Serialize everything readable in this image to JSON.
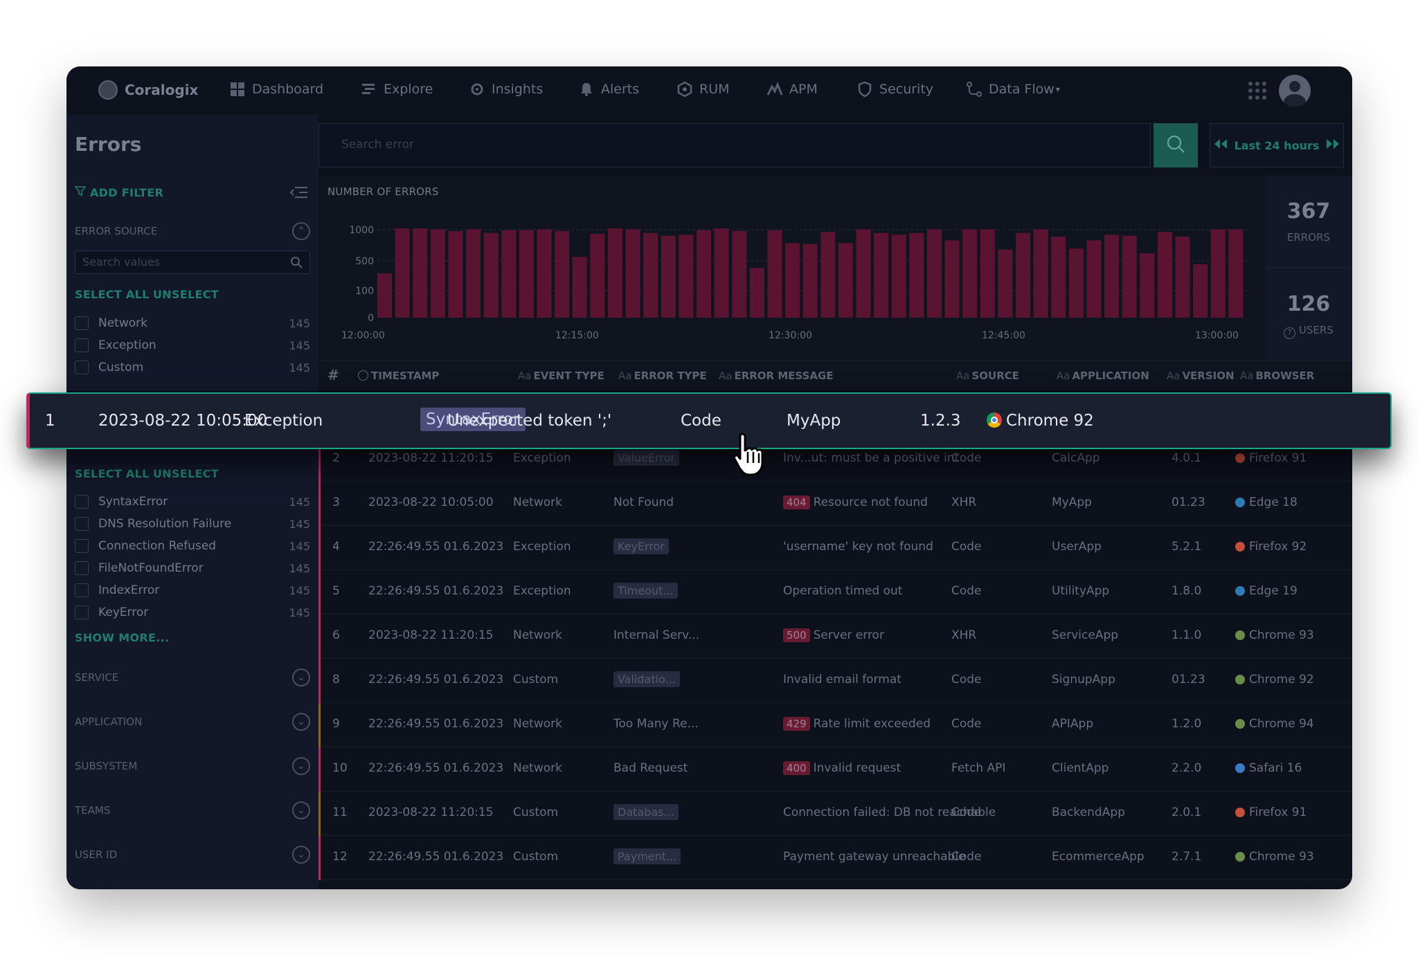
{
  "nav": {
    "brand": "Coralogix",
    "items": [
      {
        "label": "Dashboard",
        "icon": "dashboard-icon"
      },
      {
        "label": "Explore",
        "icon": "explore-icon"
      },
      {
        "label": "Insights",
        "icon": "insights-icon"
      },
      {
        "label": "Alerts",
        "icon": "bell-icon"
      },
      {
        "label": "RUM",
        "icon": "rum-icon"
      },
      {
        "label": "APM",
        "icon": "apm-icon"
      },
      {
        "label": "Security",
        "icon": "shield-icon"
      },
      {
        "label": "Data Flow",
        "icon": "data-flow-icon"
      }
    ]
  },
  "page": {
    "title": "Errors"
  },
  "search": {
    "placeholder": "Search error",
    "time_range": "Last 24 hours"
  },
  "sidebar": {
    "add_filter": "ADD FILTER",
    "error_source_title": "ERROR SOURCE",
    "search_values_placeholder": "Search values",
    "select_all": "SELECT ALL",
    "unselect": "UNSELECT",
    "sources": [
      {
        "label": "Network",
        "count": "145"
      },
      {
        "label": "Exception",
        "count": "145"
      },
      {
        "label": "Custom",
        "count": "145"
      }
    ],
    "error_types": [
      {
        "label": "SyntaxError",
        "count": "145"
      },
      {
        "label": "DNS Resolution Failure",
        "count": "145"
      },
      {
        "label": "Connection Refused",
        "count": "145"
      },
      {
        "label": "FileNotFoundError",
        "count": "145"
      },
      {
        "label": "IndexError",
        "count": "145"
      },
      {
        "label": "KeyError",
        "count": "145"
      }
    ],
    "show_more": "SHOW MORE...",
    "sections": [
      "SERVICE",
      "APPLICATION",
      "SUBSYSTEM",
      "TEAMS",
      "USER ID"
    ]
  },
  "stats": {
    "errors_count": "367",
    "errors_label": "ERRORS",
    "users_count": "126",
    "users_label": "USERS"
  },
  "chart_data": {
    "type": "bar",
    "title": "NUMBER OF ERRORS",
    "y_ticks": [
      "1000",
      "500",
      "100",
      "0"
    ],
    "x_ticks": [
      "12:00:00",
      "12:15:00",
      "12:30:00",
      "12:45:00",
      "13:00:00"
    ],
    "values": [
      480,
      970,
      970,
      960,
      940,
      960,
      920,
      950,
      950,
      960,
      940,
      660,
      910,
      970,
      960,
      920,
      890,
      900,
      950,
      970,
      940,
      540,
      950,
      810,
      800,
      930,
      810,
      960,
      920,
      900,
      920,
      960,
      840,
      960,
      960,
      740,
      920,
      960,
      880,
      750,
      840,
      900,
      890,
      700,
      930,
      880,
      580,
      960,
      960
    ],
    "color": "#5a1431"
  },
  "table": {
    "columns": [
      "#",
      "TIMESTAMP",
      "EVENT TYPE",
      "ERROR TYPE",
      "ERROR MESSAGE",
      "SOURCE",
      "APPLICATION",
      "VERSION",
      "BROWSER"
    ],
    "highlighted": {
      "num": "1",
      "timestamp": "2023-08-22 10:05:00",
      "event_type": "Exception",
      "error_type": "SyntaxError",
      "message": "Unexpected token ';'",
      "source": "Code",
      "application": "MyApp",
      "version": "1.2.3",
      "browser": "Chrome 92"
    },
    "rows": [
      {
        "num": "2",
        "timestamp": "2023-08-22 11:20:15",
        "event_type": "Exception",
        "error_type": "ValueError",
        "error_tag": true,
        "badge": "",
        "message": "Inv...ut: must be a positive int",
        "source": "Code",
        "application": "CalcApp",
        "version": "4.0.1",
        "browser": "Firefox 91",
        "tint": "#a8335d"
      },
      {
        "num": "3",
        "timestamp": "2023-08-22 10:05:00",
        "event_type": "Network",
        "error_type": "Not Found",
        "error_tag": false,
        "badge": "404",
        "message": "Resource not found",
        "source": "XHR",
        "application": "MyApp",
        "version": "01.23",
        "browser": "Edge 18",
        "tint": "#a8335d"
      },
      {
        "num": "4",
        "timestamp": "22:26:49.55 01.6.2023",
        "event_type": "Exception",
        "error_type": "KeyError",
        "error_tag": true,
        "badge": "",
        "message": "'username' key not found",
        "source": "Code",
        "application": "UserApp",
        "version": "5.2.1",
        "browser": "Firefox 92",
        "tint": "#a8335d"
      },
      {
        "num": "5",
        "timestamp": "22:26:49.55 01.6.2023",
        "event_type": "Exception",
        "error_type": "Timeout...",
        "error_tag": true,
        "badge": "",
        "message": "Operation timed out",
        "source": "Code",
        "application": "UtilityApp",
        "version": "1.8.0",
        "browser": "Edge 19",
        "tint": "#a8335d"
      },
      {
        "num": "6",
        "timestamp": "2023-08-22 11:20:15",
        "event_type": "Network",
        "error_type": "Internal Serv...",
        "error_tag": false,
        "badge": "500",
        "message": "Server error",
        "source": "XHR",
        "application": "ServiceApp",
        "version": "1.1.0",
        "browser": "Chrome 93",
        "tint": "#a8335d"
      },
      {
        "num": "8",
        "timestamp": "22:26:49.55 01.6.2023",
        "event_type": "Custom",
        "error_type": "Validatio...",
        "error_tag": true,
        "badge": "",
        "message": "Invalid email format",
        "source": "Code",
        "application": "SignupApp",
        "version": "01.23",
        "browser": "Chrome 92",
        "tint": "#a8335d"
      },
      {
        "num": "9",
        "timestamp": "22:26:49.55 01.6.2023",
        "event_type": "Network",
        "error_type": "Too Many Re...",
        "error_tag": false,
        "badge": "429",
        "message": "Rate limit exceeded",
        "source": "Code",
        "application": "APIApp",
        "version": "1.2.0",
        "browser": "Chrome 94",
        "tint": "#8a6a2a"
      },
      {
        "num": "10",
        "timestamp": "22:26:49.55 01.6.2023",
        "event_type": "Network",
        "error_type": "Bad Request",
        "error_tag": false,
        "badge": "400",
        "message": "Invalid request",
        "source": "Fetch API",
        "application": "ClientApp",
        "version": "2.2.0",
        "browser": "Safari 16",
        "tint": "#a8335d"
      },
      {
        "num": "11",
        "timestamp": "2023-08-22 11:20:15",
        "event_type": "Custom",
        "error_type": "Databas...",
        "error_tag": true,
        "badge": "",
        "message": "Connection failed: DB not reachable",
        "source": "Code",
        "application": "BackendApp",
        "version": "2.0.1",
        "browser": "Firefox 91",
        "tint": "#8a6a2a"
      },
      {
        "num": "12",
        "timestamp": "22:26:49.55 01.6.2023",
        "event_type": "Custom",
        "error_type": "Payment...",
        "error_tag": true,
        "badge": "",
        "message": "Payment gateway unreachable",
        "source": "Code",
        "application": "EcommerceApp",
        "version": "2.7.1",
        "browser": "Chrome 93",
        "tint": "#a8335d"
      }
    ]
  },
  "colors": {
    "accent": "#1f7f6e",
    "highlight_border": "#1aa886",
    "bar": "#5a1431",
    "error_tint": "#a8335d"
  }
}
